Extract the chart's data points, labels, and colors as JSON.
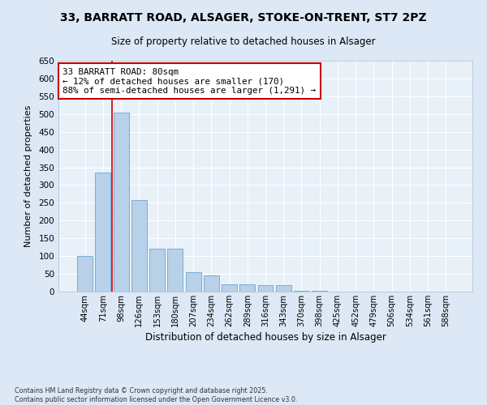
{
  "title_line1": "33, BARRATT ROAD, ALSAGER, STOKE-ON-TRENT, ST7 2PZ",
  "title_line2": "Size of property relative to detached houses in Alsager",
  "xlabel": "Distribution of detached houses by size in Alsager",
  "ylabel": "Number of detached properties",
  "categories": [
    "44sqm",
    "71sqm",
    "98sqm",
    "126sqm",
    "153sqm",
    "180sqm",
    "207sqm",
    "234sqm",
    "262sqm",
    "289sqm",
    "316sqm",
    "343sqm",
    "370sqm",
    "398sqm",
    "425sqm",
    "452sqm",
    "479sqm",
    "506sqm",
    "534sqm",
    "561sqm",
    "588sqm"
  ],
  "values": [
    100,
    335,
    505,
    258,
    120,
    120,
    55,
    45,
    20,
    20,
    18,
    18,
    3,
    2,
    1,
    1,
    1,
    1,
    1,
    1,
    1
  ],
  "bar_color": "#b8d0e8",
  "bar_edge_color": "#7aafd4",
  "vline_x": 1.5,
  "vline_color": "#cc0000",
  "annotation_text": "33 BARRATT ROAD: 80sqm\n← 12% of detached houses are smaller (170)\n88% of semi-detached houses are larger (1,291) →",
  "annotation_box_color": "#cc0000",
  "annotation_fill": "#ffffff",
  "ylim": [
    0,
    650
  ],
  "yticks": [
    0,
    50,
    100,
    150,
    200,
    250,
    300,
    350,
    400,
    450,
    500,
    550,
    600,
    650
  ],
  "footer_line1": "Contains HM Land Registry data © Crown copyright and database right 2025.",
  "footer_line2": "Contains public sector information licensed under the Open Government Licence v3.0.",
  "bg_color": "#dce8f5",
  "plot_bg_color": "#e8f0f8"
}
